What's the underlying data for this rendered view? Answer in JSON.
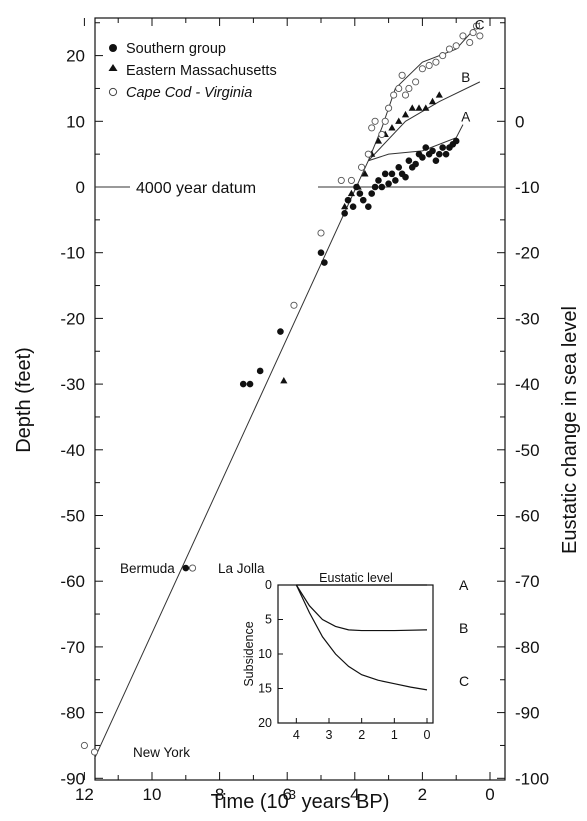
{
  "colors": {
    "ink": "#111111",
    "background": "#ffffff"
  },
  "chart_data": {
    "type": "scatter",
    "title": "",
    "xlabel": "Time (10³ years BP)",
    "xlabel_parts": {
      "pre": "Time (10",
      "sup": "3",
      "post": " years BP)"
    },
    "ylabel": "Depth (feet)",
    "ylabel_right": "Eustatic change in sea level",
    "xlim": [
      12,
      0
    ],
    "ylim": [
      -90,
      26
    ],
    "xticks": [
      12,
      10,
      8,
      6,
      4,
      2,
      0
    ],
    "yticks": [
      20,
      10,
      0,
      -10,
      -20,
      -30,
      -40,
      -50,
      -60,
      -70,
      -80,
      -90
    ],
    "yticks_right": [
      0,
      -10,
      -20,
      -30,
      -40,
      -50,
      -60,
      -70,
      -80,
      -90,
      -100
    ],
    "right_axis_offset_note": "right value = left value - 10",
    "grid": false,
    "legend": {
      "position": "top-left",
      "entries": [
        {
          "label": "Southern group",
          "marker": "filled-circle"
        },
        {
          "label": "Eastern Massachusetts",
          "marker": "filled-triangle"
        },
        {
          "label": "Cape Cod - Virginia",
          "marker": "open-circle"
        }
      ]
    },
    "annotations": {
      "datum": "4000 year datum",
      "bermuda": "Bermuda",
      "la_jolla": "La Jolla",
      "new_york": "New York",
      "curve_a": "A",
      "curve_b": "B",
      "curve_c": "C"
    },
    "series": [
      {
        "name": "Southern group",
        "marker": "filled-circle",
        "points": [
          [
            7.3,
            -30
          ],
          [
            7.1,
            -30
          ],
          [
            6.8,
            -28
          ],
          [
            6.2,
            -22
          ],
          [
            9.0,
            -58
          ],
          [
            5.0,
            -10
          ],
          [
            4.9,
            -11.5
          ],
          [
            4.3,
            -4
          ],
          [
            4.2,
            -2
          ],
          [
            4.05,
            -3
          ],
          [
            3.95,
            0
          ],
          [
            3.85,
            -1
          ],
          [
            3.75,
            -2
          ],
          [
            3.6,
            -3
          ],
          [
            3.5,
            -1
          ],
          [
            3.4,
            0
          ],
          [
            3.3,
            1
          ],
          [
            3.2,
            0
          ],
          [
            3.1,
            2
          ],
          [
            3.0,
            0.5
          ],
          [
            2.9,
            2
          ],
          [
            2.8,
            1
          ],
          [
            2.7,
            3
          ],
          [
            2.6,
            2
          ],
          [
            2.5,
            1.5
          ],
          [
            2.4,
            4
          ],
          [
            2.3,
            3
          ],
          [
            2.2,
            3.5
          ],
          [
            2.1,
            5
          ],
          [
            2.0,
            4.5
          ],
          [
            1.9,
            6
          ],
          [
            1.8,
            5
          ],
          [
            1.7,
            5.5
          ],
          [
            1.6,
            4
          ],
          [
            1.5,
            5
          ],
          [
            1.4,
            6
          ],
          [
            1.3,
            5
          ],
          [
            1.2,
            6
          ],
          [
            1.1,
            6.5
          ],
          [
            1.0,
            7
          ]
        ]
      },
      {
        "name": "Eastern Massachusetts",
        "marker": "filled-triangle",
        "points": [
          [
            6.1,
            -29.5
          ],
          [
            4.3,
            -3
          ],
          [
            4.1,
            -1
          ],
          [
            3.9,
            0
          ],
          [
            3.7,
            2
          ],
          [
            3.5,
            5
          ],
          [
            3.3,
            7
          ],
          [
            3.1,
            8
          ],
          [
            2.9,
            9
          ],
          [
            2.7,
            10
          ],
          [
            2.5,
            11
          ],
          [
            2.3,
            12
          ],
          [
            2.1,
            12
          ],
          [
            1.9,
            12
          ],
          [
            1.7,
            13
          ],
          [
            1.5,
            14
          ]
        ]
      },
      {
        "name": "Cape Cod - Virginia",
        "marker": "open-circle",
        "points": [
          [
            12.0,
            -85
          ],
          [
            11.7,
            -86
          ],
          [
            8.8,
            -58
          ],
          [
            5.8,
            -18
          ],
          [
            5.0,
            -7
          ],
          [
            4.4,
            1
          ],
          [
            4.1,
            1
          ],
          [
            3.8,
            3
          ],
          [
            3.6,
            5
          ],
          [
            3.5,
            9
          ],
          [
            3.4,
            10
          ],
          [
            3.2,
            8
          ],
          [
            3.1,
            10
          ],
          [
            3.0,
            12
          ],
          [
            2.85,
            14
          ],
          [
            2.7,
            15
          ],
          [
            2.6,
            17
          ],
          [
            2.5,
            14
          ],
          [
            2.4,
            15
          ],
          [
            2.2,
            16
          ],
          [
            2.0,
            18
          ],
          [
            1.8,
            18.5
          ],
          [
            1.6,
            19
          ],
          [
            1.4,
            20
          ],
          [
            1.2,
            21
          ],
          [
            1.0,
            21.5
          ],
          [
            0.8,
            23
          ],
          [
            0.6,
            22
          ],
          [
            0.5,
            23.5
          ],
          [
            0.4,
            24.5
          ],
          [
            0.3,
            23
          ]
        ]
      }
    ],
    "fit_lines": {
      "main": [
        [
          11.7,
          -87
        ],
        [
          3.6,
          4
        ]
      ],
      "A": [
        [
          3.6,
          4
        ],
        [
          3.0,
          5
        ],
        [
          2.0,
          5.5
        ],
        [
          1.0,
          7.5
        ],
        [
          0.8,
          9.5
        ]
      ],
      "B": [
        [
          3.6,
          4
        ],
        [
          2.5,
          10
        ],
        [
          1.5,
          13
        ],
        [
          0.3,
          16
        ]
      ],
      "C": [
        [
          3.6,
          4
        ],
        [
          3.2,
          9
        ],
        [
          2.8,
          15
        ],
        [
          2.0,
          19
        ],
        [
          1.0,
          21
        ],
        [
          0.3,
          25
        ]
      ]
    },
    "inset": {
      "type": "line",
      "title": "Eustatic level",
      "ylabel": "Subsidence",
      "xlim": [
        5,
        0
      ],
      "ylim": [
        0,
        20
      ],
      "xticks": [
        4,
        3,
        2,
        1,
        0
      ],
      "yticks": [
        0,
        5,
        10,
        15,
        20
      ],
      "series": [
        {
          "name": "A",
          "points": [
            [
              4,
              0
            ],
            [
              0,
              0
            ]
          ]
        },
        {
          "name": "B",
          "points": [
            [
              4,
              0
            ],
            [
              3.6,
              3
            ],
            [
              3.2,
              5
            ],
            [
              2.8,
              6
            ],
            [
              2.4,
              6.5
            ],
            [
              2,
              6.6
            ],
            [
              1,
              6.6
            ],
            [
              0,
              6.5
            ]
          ]
        },
        {
          "name": "C",
          "points": [
            [
              4,
              0
            ],
            [
              3.6,
              4
            ],
            [
              3.2,
              7.5
            ],
            [
              2.8,
              10
            ],
            [
              2.4,
              11.8
            ],
            [
              2,
              13
            ],
            [
              1.5,
              13.8
            ],
            [
              1,
              14.3
            ],
            [
              0.5,
              14.8
            ],
            [
              0,
              15.2
            ]
          ]
        }
      ]
    }
  }
}
